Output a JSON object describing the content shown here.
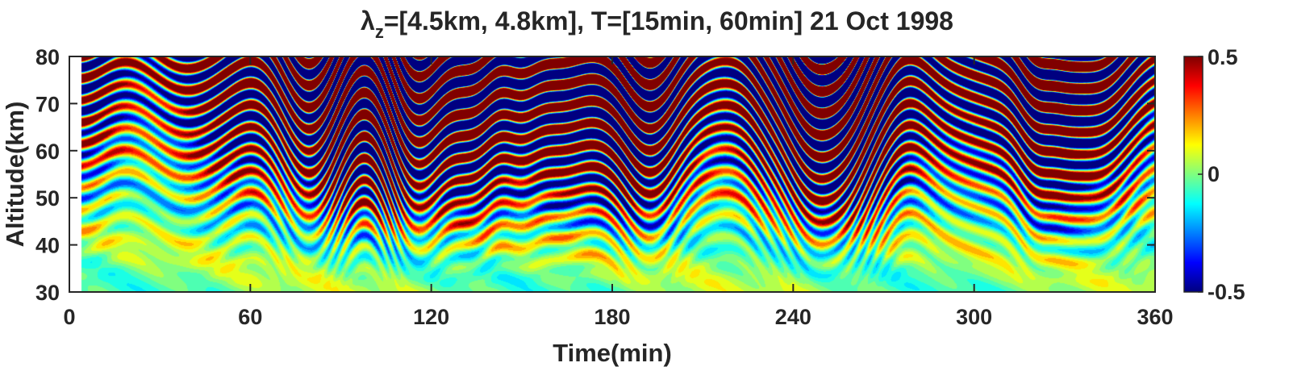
{
  "chart_data": {
    "type": "heatmap",
    "title": {
      "symbol": "λ",
      "subscript": "z",
      "text": "=[4.5km, 4.8km], T=[15min, 60min] 21 Oct 1998"
    },
    "xlabel": "Time(min)",
    "ylabel": "Altitude(km)",
    "xlim": [
      0,
      360
    ],
    "ylim": [
      30,
      80
    ],
    "xticks": [
      "0",
      "60",
      "120",
      "180",
      "240",
      "300",
      "360"
    ],
    "yticks": [
      "30",
      "40",
      "50",
      "60",
      "70",
      "80"
    ],
    "data_time_range": [
      4,
      360
    ],
    "colorbar": {
      "range": [
        -0.5,
        0.5
      ],
      "ticks": [
        "0.5",
        "0",
        "-0.5"
      ],
      "colormap": "jet"
    },
    "grid": false,
    "field_description": "Band-pass filtered perturbation field: near zero (green/cyan) below ~40 km, quasi-horizontal alternating red/blue bands with ~4.5-4.8 km vertical wavelength growing in amplitude with altitude and saturating above ~60 km, with downward-sloping phase lines in time."
  }
}
